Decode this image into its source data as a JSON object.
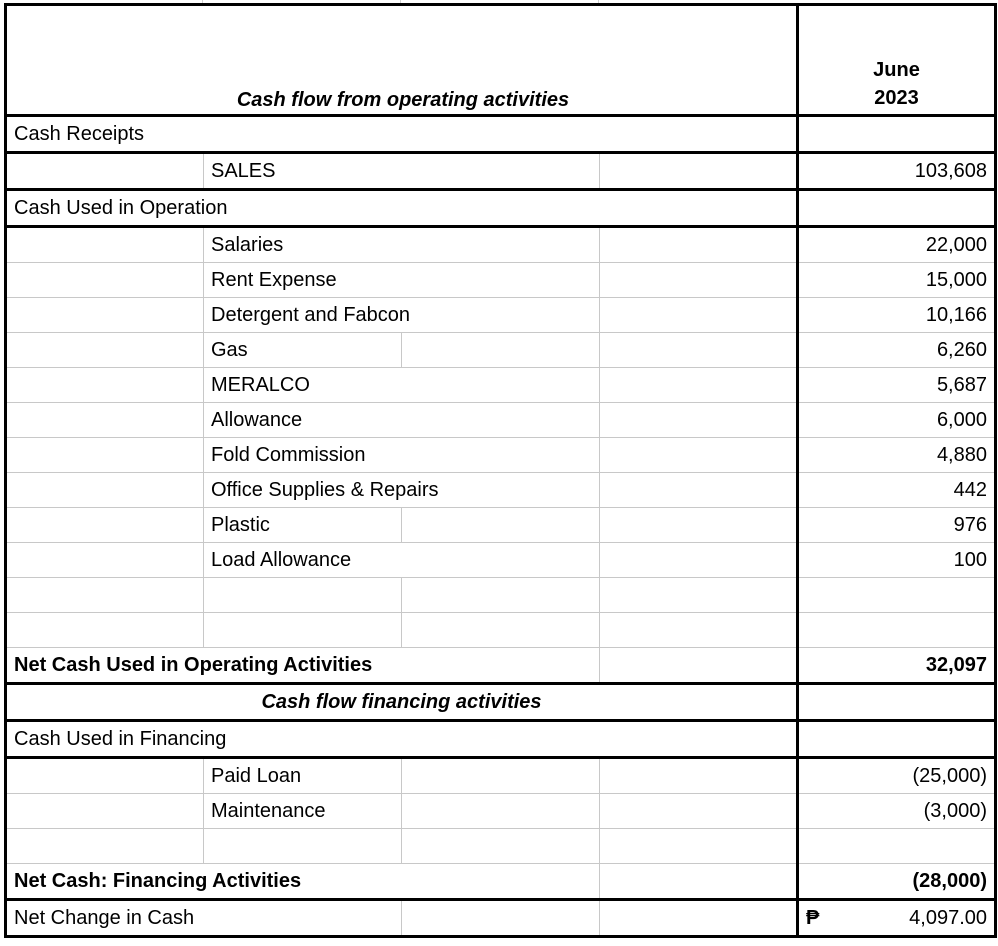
{
  "header": {
    "title": "Cash flow from operating activities",
    "period_line1": "June",
    "period_line2": "2023"
  },
  "rows": [
    {
      "type": "section",
      "label": "Cash Receipts",
      "value": ""
    },
    {
      "type": "item",
      "label": "SALES",
      "value": "103,608"
    },
    {
      "type": "section",
      "label": "Cash Used in Operation",
      "value": ""
    },
    {
      "type": "item",
      "label": "Salaries",
      "value": "22,000"
    },
    {
      "type": "item",
      "label": "Rent Expense",
      "value": "15,000"
    },
    {
      "type": "item",
      "label": "Detergent and Fabcon",
      "value": "10,166"
    },
    {
      "type": "item",
      "label": "Gas",
      "value": "6,260"
    },
    {
      "type": "item",
      "label": "MERALCO",
      "value": "5,687"
    },
    {
      "type": "item",
      "label": "Allowance",
      "value": "6,000"
    },
    {
      "type": "item",
      "label": "Fold Commission",
      "value": "4,880"
    },
    {
      "type": "item",
      "label": "Office Supplies & Repairs",
      "value": "442"
    },
    {
      "type": "item",
      "label": "Plastic",
      "value": "976"
    },
    {
      "type": "item",
      "label": "Load Allowance",
      "value": "100"
    },
    {
      "type": "blank",
      "label": "",
      "value": ""
    },
    {
      "type": "blank",
      "label": "",
      "value": ""
    },
    {
      "type": "total",
      "label": "Net Cash Used in Operating Activities",
      "value": "32,097"
    },
    {
      "type": "subhead",
      "label": "Cash flow financing activities",
      "value": ""
    },
    {
      "type": "section",
      "label": "Cash Used in Financing",
      "value": ""
    },
    {
      "type": "item",
      "label": "Paid Loan",
      "value": "(25,000)"
    },
    {
      "type": "item",
      "label": "Maintenance",
      "value": "(3,000)"
    },
    {
      "type": "blank",
      "label": "",
      "value": ""
    },
    {
      "type": "total",
      "label": "Net Cash: Financing Activities",
      "value": "(28,000)"
    },
    {
      "type": "final",
      "label": "Net Change in Cash",
      "value": "4,097.00",
      "currency": "₱"
    }
  ]
}
